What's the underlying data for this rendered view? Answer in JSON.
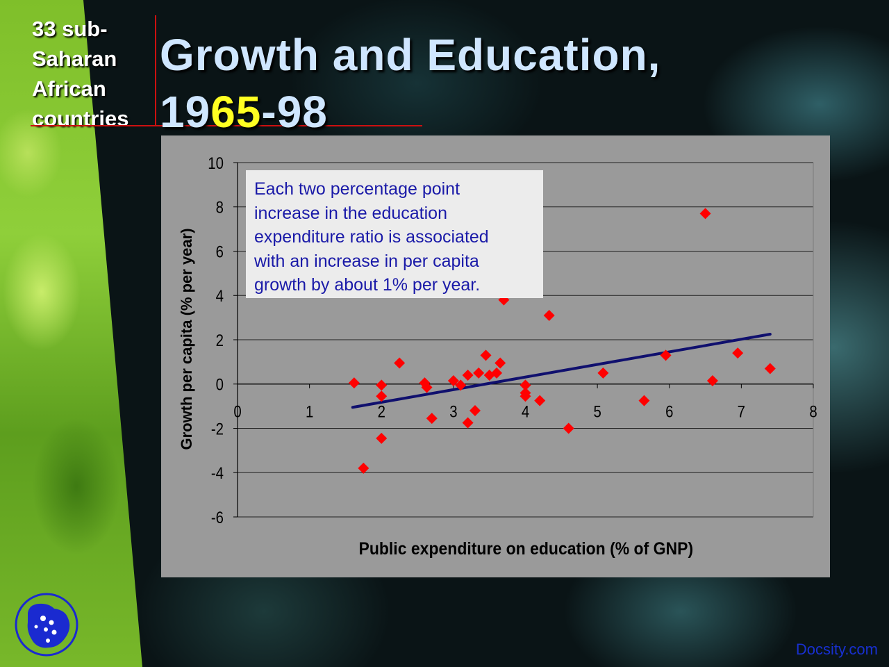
{
  "slide": {
    "side_title_lines": [
      "33 sub-",
      "Saharan",
      "African",
      "countries"
    ],
    "title_line1": "Growth and Education,",
    "title_line2": {
      "part1": "19",
      "part2": "65",
      "part3": "-98"
    },
    "annotation_lines": [
      "Each two percentage point",
      "increase in the education",
      "expenditure ratio is associated",
      "with an increase in per capita",
      "growth by about 1% per year."
    ],
    "watermark": "Docsity.com",
    "logo_icon": "map-logo-icon"
  },
  "colors": {
    "title": "#cfe6ff",
    "title_highlight": "#ffff22",
    "rule": "#cc1010",
    "points": "#ff0000",
    "trend": "#10106e",
    "plot_bg": "#9a9a9a"
  },
  "chart_data": {
    "type": "scatter",
    "title": "",
    "xlabel": "Public expenditure on education (% of GNP)",
    "ylabel": "Growth per capita (% per year)",
    "xlim": [
      0,
      8
    ],
    "ylim": [
      -6,
      10
    ],
    "x_ticks": [
      "0",
      "1",
      "2",
      "3",
      "4",
      "5",
      "6",
      "7",
      "8"
    ],
    "y_ticks": [
      "10",
      "8",
      "6",
      "4",
      "2",
      "0",
      "-2",
      "-4",
      "-6"
    ],
    "grid": "horizontal",
    "legend": "none",
    "points": [
      [
        1.62,
        0.05
      ],
      [
        1.75,
        -3.8
      ],
      [
        2.0,
        -0.05
      ],
      [
        2.0,
        -0.55
      ],
      [
        2.0,
        -2.45
      ],
      [
        2.25,
        0.95
      ],
      [
        2.6,
        0.05
      ],
      [
        2.63,
        -0.15
      ],
      [
        2.7,
        -1.55
      ],
      [
        3.0,
        0.15
      ],
      [
        3.1,
        -0.05
      ],
      [
        3.2,
        0.4
      ],
      [
        3.2,
        -1.75
      ],
      [
        3.3,
        -1.2
      ],
      [
        3.35,
        0.5
      ],
      [
        3.45,
        1.3
      ],
      [
        3.5,
        0.4
      ],
      [
        3.6,
        0.5
      ],
      [
        3.65,
        0.95
      ],
      [
        3.7,
        3.8
      ],
      [
        4.0,
        -0.05
      ],
      [
        4.0,
        -0.4
      ],
      [
        4.0,
        -0.55
      ],
      [
        4.2,
        -0.75
      ],
      [
        4.33,
        3.1
      ],
      [
        4.6,
        -2.0
      ],
      [
        5.08,
        0.5
      ],
      [
        5.65,
        -0.75
      ],
      [
        5.95,
        1.3
      ],
      [
        6.5,
        7.7
      ],
      [
        6.6,
        0.15
      ],
      [
        6.95,
        1.4
      ],
      [
        7.4,
        0.7
      ]
    ],
    "trendline": [
      [
        1.6,
        -1.05
      ],
      [
        7.4,
        2.25
      ]
    ]
  }
}
